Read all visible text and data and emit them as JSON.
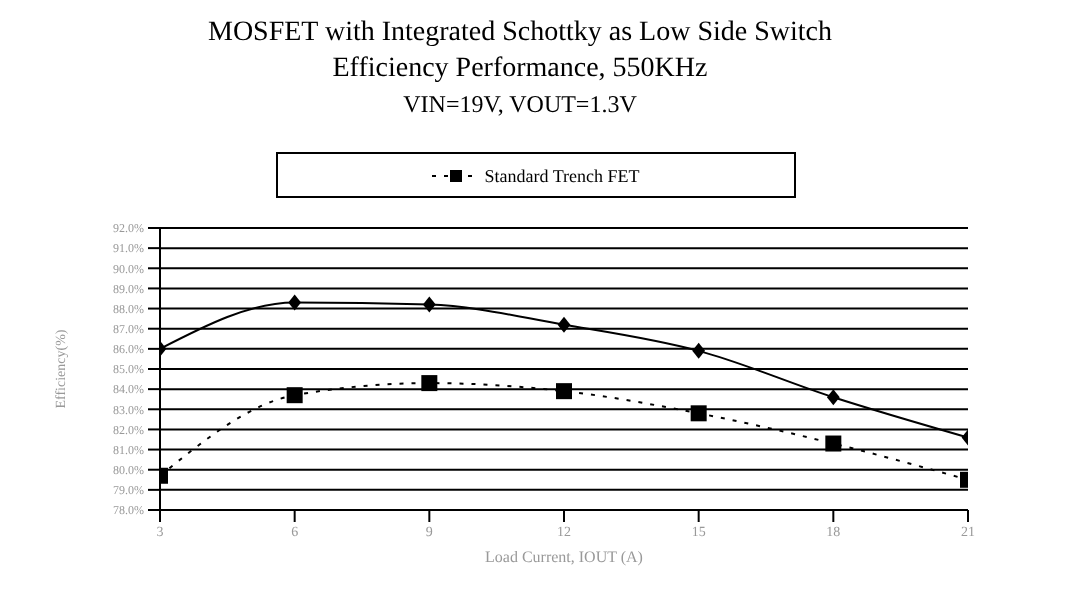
{
  "chart_data": {
    "type": "line",
    "title": "MOSFET with Integrated Schottky as Low Side Switch",
    "subtitle": "Efficiency Performance, 550KHz\nVIN=19V, VOUT=1.3V",
    "xlabel": "Load Current, IOUT (A)",
    "ylabel": "Efficiency(%)",
    "x": [
      3,
      6,
      9,
      12,
      15,
      18,
      21
    ],
    "series": [
      {
        "name": "Standard Trench FET",
        "color": "#000000",
        "marker": "square",
        "line_style": "dotted",
        "values": [
          79.7,
          83.7,
          84.3,
          83.9,
          82.8,
          81.3,
          79.5
        ]
      },
      {
        "color": "#000000",
        "marker": "diamond",
        "line_style": "solid",
        "values": [
          86.0,
          88.3,
          88.2,
          87.2,
          85.9,
          83.6,
          81.6
        ]
      }
    ],
    "xlim": [
      3,
      21
    ],
    "xticks": [
      3,
      6,
      9,
      12,
      15,
      18,
      21
    ],
    "ylim": [
      78,
      92
    ],
    "yticks": [
      {
        "value": 78,
        "label": "78.0%"
      },
      {
        "value": 79,
        "label": "79.0%"
      },
      {
        "value": 80,
        "label": "80.0%"
      },
      {
        "value": 81,
        "label": "81.0%"
      },
      {
        "value": 82,
        "label": "82.0%"
      },
      {
        "value": 83,
        "label": "83.0%"
      },
      {
        "value": 84,
        "label": "84.0%"
      },
      {
        "value": 85,
        "label": "85.0%"
      },
      {
        "value": 86,
        "label": "86.0%"
      },
      {
        "value": 87,
        "label": "87.0%"
      },
      {
        "value": 88,
        "label": "88.0%"
      },
      {
        "value": 89,
        "label": "89.0%"
      },
      {
        "value": 90,
        "label": "90.0%"
      },
      {
        "value": 91,
        "label": "91.0%"
      },
      {
        "value": 92,
        "label": "92.0%"
      }
    ],
    "grid": "y",
    "legend": "top"
  }
}
